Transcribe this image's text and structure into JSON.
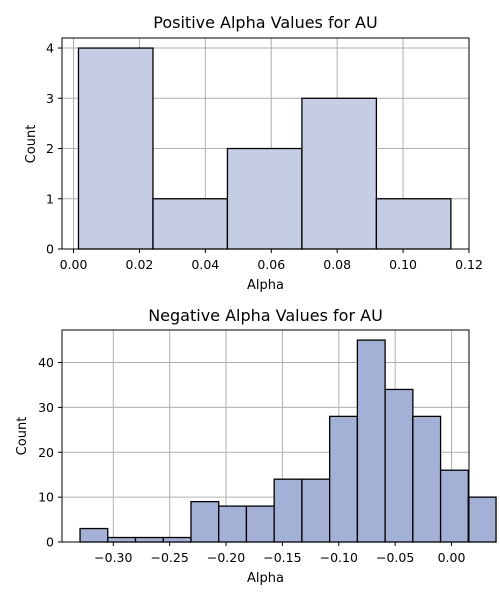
{
  "chart_data": [
    {
      "type": "bar",
      "title": "Positive Alpha Values for AU",
      "xlabel": "Alpha",
      "ylabel": "Count",
      "xlim": [
        -0.0035,
        0.12
      ],
      "ylim": [
        0,
        4.2
      ],
      "xticks": [
        0.0,
        0.02,
        0.04,
        0.06,
        0.08,
        0.1,
        0.12
      ],
      "xtick_labels": [
        "0.00",
        "0.02",
        "0.04",
        "0.06",
        "0.08",
        "0.10",
        "0.12"
      ],
      "yticks": [
        0,
        1,
        2,
        3,
        4
      ],
      "ytick_labels": [
        "0",
        "1",
        "2",
        "3",
        "4"
      ],
      "grid": true,
      "bar_color": "#c4cde3",
      "bins": [
        {
          "x0": 0.0015,
          "x1": 0.0241,
          "count": 4
        },
        {
          "x0": 0.0241,
          "x1": 0.0467,
          "count": 1
        },
        {
          "x0": 0.0467,
          "x1": 0.0693,
          "count": 2
        },
        {
          "x0": 0.0693,
          "x1": 0.0919,
          "count": 3
        },
        {
          "x0": 0.0919,
          "x1": 0.1145,
          "count": 1
        }
      ]
    },
    {
      "type": "bar",
      "title": "Negative Alpha Values for AU",
      "xlabel": "Alpha",
      "ylabel": "Count",
      "xlim": [
        -0.3455,
        0.0155
      ],
      "ylim": [
        0,
        47.25
      ],
      "xticks": [
        -0.3,
        -0.25,
        -0.2,
        -0.15,
        -0.1,
        -0.05,
        0.0
      ],
      "xtick_labels": [
        "−0.30",
        "−0.25",
        "−0.20",
        "−0.15",
        "−0.10",
        "−0.05",
        "0.00"
      ],
      "yticks": [
        0,
        10,
        20,
        30,
        40
      ],
      "ytick_labels": [
        "0",
        "10",
        "20",
        "30",
        "40"
      ],
      "grid": true,
      "bar_color": "#a4b1d6",
      "bin_start": -0.3295,
      "bin_width": 0.0246,
      "counts": [
        3,
        1,
        1,
        1,
        9,
        8,
        8,
        14,
        14,
        28,
        45,
        34,
        28,
        16,
        10
      ]
    }
  ]
}
